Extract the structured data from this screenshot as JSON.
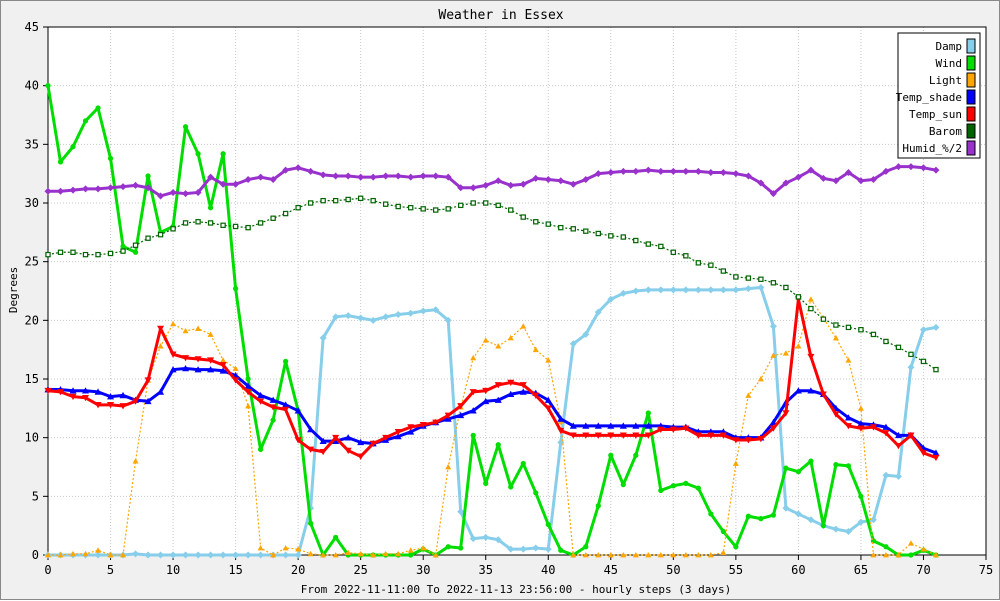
{
  "chart_data": {
    "type": "line",
    "title": "Weather in Essex",
    "xlabel": "From 2022-11-11:00 To 2022-11-13 23:56:00 - hourly steps (3 days)",
    "ylabel": "Degrees",
    "xlim": [
      0,
      75
    ],
    "ylim": [
      0,
      45
    ],
    "xticks": [
      0,
      5,
      10,
      15,
      20,
      25,
      30,
      35,
      40,
      45,
      50,
      55,
      60,
      65,
      70,
      75
    ],
    "yticks": [
      0,
      5,
      10,
      15,
      20,
      25,
      30,
      35,
      40,
      45
    ],
    "grid": true,
    "legend_position": "top-right",
    "series": [
      {
        "name": "Damp",
        "color": "#87ceeb",
        "marker": "diamond",
        "dashed": false,
        "values": [
          0,
          0,
          0,
          0,
          0,
          0,
          0,
          0.1,
          0,
          0,
          0,
          0,
          0,
          0,
          0,
          0,
          0,
          0,
          0,
          0,
          0,
          4,
          18.5,
          20.3,
          20.4,
          20.2,
          20,
          20.3,
          20.5,
          20.6,
          20.8,
          20.9,
          20,
          3.7,
          1.4,
          1.5,
          1.3,
          0.5,
          0.5,
          0.6,
          0.5,
          9.6,
          18,
          18.8,
          20.7,
          21.8,
          22.3,
          22.5,
          22.6,
          22.6,
          22.6,
          22.6,
          22.6,
          22.6,
          22.6,
          22.6,
          22.7,
          22.8,
          19.5,
          4,
          3.5,
          3,
          2.5,
          2.2,
          2,
          2.8,
          3,
          6.8,
          6.7,
          16,
          19.2,
          19.4
        ]
      },
      {
        "name": "Wind",
        "color": "#00dd00",
        "marker": "circle",
        "dashed": false,
        "values": [
          40,
          33.5,
          34.8,
          37,
          38.1,
          33.8,
          26.3,
          25.8,
          32.3,
          27.5,
          28,
          36.5,
          34.2,
          29.6,
          34.2,
          22.7,
          15,
          9,
          11.5,
          16.5,
          12.3,
          2.7,
          0,
          1.5,
          0,
          0,
          0,
          0,
          0,
          0,
          0.5,
          0,
          0.7,
          0.6,
          10.2,
          6.1,
          9.4,
          5.8,
          7.8,
          5.3,
          2.6,
          0.4,
          0,
          0.7,
          4.2,
          8.5,
          6,
          8.5,
          12.1,
          5.5,
          5.9,
          6.1,
          5.7,
          3.5,
          2,
          0.7,
          3.3,
          3.1,
          3.4,
          7.4,
          7.1,
          8,
          2.5,
          7.7,
          7.6,
          5,
          1.2,
          0.7,
          0,
          0,
          0.4,
          0
        ]
      },
      {
        "name": "Light",
        "color": "#ffa500",
        "marker": "triangle-up",
        "dashed": true,
        "values": [
          0,
          0,
          0.1,
          0.1,
          0.4,
          0,
          0,
          8,
          14.9,
          17.8,
          19.7,
          19.1,
          19.3,
          18.8,
          16.6,
          15.9,
          12.7,
          0.6,
          0,
          0.6,
          0.5,
          0.1,
          0,
          0,
          0.2,
          0.1,
          0,
          0.1,
          0.1,
          0.4,
          0.6,
          0,
          7.5,
          12.6,
          16.8,
          18.3,
          17.8,
          18.5,
          19.5,
          17.5,
          16.6,
          11.4,
          0,
          0,
          0,
          0,
          0,
          0,
          0,
          0,
          0,
          0,
          0,
          0,
          0.2,
          7.8,
          13.6,
          15,
          17,
          17.2,
          17.8,
          21.8,
          20.2,
          18.5,
          16.6,
          12.5,
          0,
          0,
          0,
          1,
          0.5,
          0
        ]
      },
      {
        "name": "Temp_shade",
        "color": "#0000ff",
        "marker": "triangle-up",
        "dashed": false,
        "values": [
          14.1,
          14.1,
          14,
          14,
          13.9,
          13.5,
          13.6,
          13.2,
          13.1,
          13.9,
          15.8,
          15.9,
          15.8,
          15.8,
          15.7,
          15.3,
          14.4,
          13.6,
          13.2,
          12.8,
          12.3,
          10.7,
          9.7,
          9.7,
          10,
          9.6,
          9.5,
          9.8,
          10.1,
          10.5,
          11,
          11.3,
          11.6,
          11.9,
          12.3,
          13.1,
          13.2,
          13.7,
          13.9,
          13.8,
          13.2,
          11.6,
          11,
          11,
          11,
          11,
          11,
          11,
          11,
          11,
          10.9,
          10.9,
          10.5,
          10.5,
          10.5,
          10,
          10,
          10,
          11.3,
          13,
          14,
          14,
          13.7,
          12.5,
          11.7,
          11.2,
          11.1,
          10.9,
          10.2,
          10.2,
          9.1,
          8.7
        ]
      },
      {
        "name": "Temp_sun",
        "color": "#ff0000",
        "marker": "triangle-down",
        "dashed": false,
        "values": [
          14,
          13.9,
          13.5,
          13.4,
          12.8,
          12.8,
          12.7,
          13.1,
          14.9,
          19.3,
          17.1,
          16.8,
          16.7,
          16.6,
          16.2,
          14.9,
          13.9,
          13.1,
          12.6,
          12.4,
          9.8,
          9,
          8.8,
          10,
          8.9,
          8.4,
          9.5,
          10,
          10.5,
          10.9,
          11.1,
          11.3,
          11.9,
          12.7,
          13.9,
          14,
          14.5,
          14.7,
          14.5,
          13.6,
          12.5,
          10.6,
          10.2,
          10.2,
          10.2,
          10.2,
          10.2,
          10.2,
          10.2,
          10.7,
          10.7,
          10.8,
          10.2,
          10.2,
          10.2,
          9.8,
          9.8,
          9.9,
          10.8,
          12.1,
          21.8,
          16.9,
          13.7,
          12,
          11,
          10.8,
          10.9,
          10.4,
          9.3,
          10.2,
          8.7,
          8.3
        ]
      },
      {
        "name": "Barom",
        "color": "#006400",
        "marker": "square",
        "dashed": true,
        "values": [
          25.6,
          25.8,
          25.8,
          25.6,
          25.6,
          25.7,
          25.9,
          26.4,
          27,
          27.3,
          27.8,
          28.3,
          28.4,
          28.3,
          28.1,
          28,
          27.9,
          28.3,
          28.7,
          29.1,
          29.6,
          30,
          30.2,
          30.2,
          30.3,
          30.4,
          30.2,
          29.9,
          29.7,
          29.6,
          29.5,
          29.4,
          29.5,
          29.8,
          30,
          30,
          29.8,
          29.4,
          28.8,
          28.4,
          28.2,
          27.9,
          27.8,
          27.6,
          27.4,
          27.2,
          27.1,
          26.8,
          26.5,
          26.3,
          25.8,
          25.5,
          24.9,
          24.7,
          24.2,
          23.7,
          23.6,
          23.5,
          23.2,
          22.8,
          22,
          21,
          20.1,
          19.6,
          19.4,
          19.2,
          18.8,
          18.2,
          17.7,
          17.1,
          16.5,
          15.8
        ]
      },
      {
        "name": "Humid_%/2",
        "color": "#9932cc",
        "marker": "diamond",
        "dashed": false,
        "values": [
          31,
          31,
          31.1,
          31.2,
          31.2,
          31.3,
          31.4,
          31.5,
          31.3,
          30.6,
          30.9,
          30.8,
          30.9,
          32.2,
          31.6,
          31.6,
          32,
          32.2,
          32,
          32.8,
          33,
          32.7,
          32.4,
          32.3,
          32.3,
          32.2,
          32.2,
          32.3,
          32.3,
          32.2,
          32.3,
          32.3,
          32.2,
          31.3,
          31.3,
          31.5,
          31.9,
          31.5,
          31.6,
          32.1,
          32,
          31.9,
          31.6,
          32,
          32.5,
          32.6,
          32.7,
          32.7,
          32.8,
          32.7,
          32.7,
          32.7,
          32.7,
          32.6,
          32.6,
          32.5,
          32.3,
          31.7,
          30.8,
          31.7,
          32.2,
          32.8,
          32.1,
          31.9,
          32.6,
          31.9,
          32.0,
          32.7,
          33.1,
          33.1,
          33,
          32.8
        ]
      }
    ]
  }
}
